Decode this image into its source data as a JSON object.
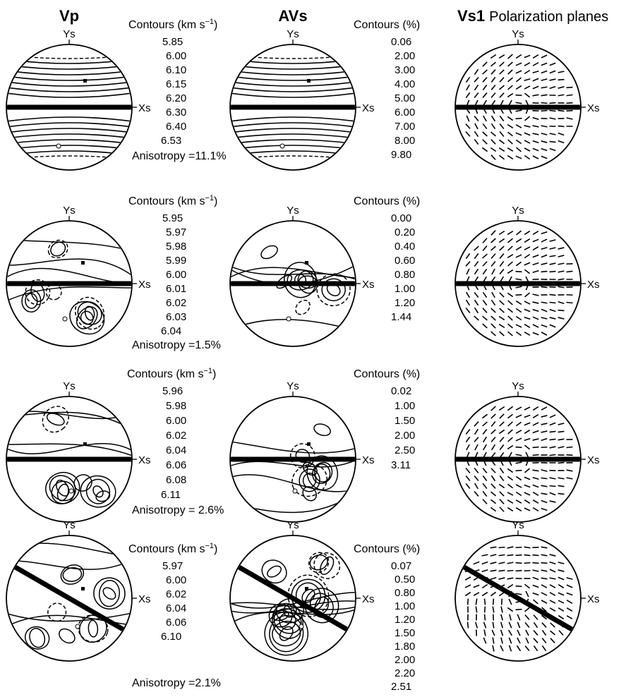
{
  "headers": {
    "vp": "Vp",
    "avs": "AVs",
    "vs1_bold": "Vs1",
    "vs1_rest": "Polarization planes"
  },
  "axis_labels": {
    "y": "Ys",
    "x": "Xs"
  },
  "rows": [
    {
      "vp_title": "Contours (km s",
      "vp_title_sup": "−1",
      "vp_title_end": ")",
      "vp_values": [
        "5.85",
        "6.00",
        "6.10",
        "6.15",
        "6.20",
        "6.30",
        "6.40",
        "6.53"
      ],
      "anisotropy": "Anisotropy =11.1%",
      "avs_title": "Contours (%)",
      "avs_values": [
        "0.06",
        "2.00",
        "3.00",
        "4.00",
        "5.00",
        "6.00",
        "7.00",
        "8.00",
        "9.80"
      ]
    },
    {
      "vp_title": "Contours (km s",
      "vp_title_sup": "−1",
      "vp_title_end": ")",
      "vp_values": [
        "5.95",
        "5.97",
        "5.98",
        "5.99",
        "6.00",
        "6.01",
        "6.02",
        "6.03",
        "6.04"
      ],
      "anisotropy": "Anisotropy =1.5%",
      "avs_title": "Contours (%)",
      "avs_values": [
        "0.00",
        "0.20",
        "0.40",
        "0.60",
        "0.80",
        "1.00",
        "1.20",
        "1.44"
      ]
    },
    {
      "vp_title": "Contours (km s",
      "vp_title_sup": "−1",
      "vp_title_end": ")",
      "vp_values": [
        "5.96",
        "5.98",
        "6.00",
        "6.02",
        "6.04",
        "6.06",
        "6.08",
        "6.11"
      ],
      "anisotropy": "Anisotropy = 2.6%",
      "avs_title": "Contours (%)",
      "avs_values": [
        "0.02",
        "1.00",
        "1.50",
        "2.00",
        "2.50",
        "3.11"
      ]
    },
    {
      "vp_title": "Contours (km s",
      "vp_title_sup": "−1",
      "vp_title_end": ")",
      "vp_values": [
        "5.97",
        "6.00",
        "6.02",
        "6.04",
        "6.06",
        "6.10"
      ],
      "anisotropy": "Anisotropy =2.1%",
      "avs_title": "Contours (%)",
      "avs_values": [
        "0.07",
        "0.50",
        "0.80",
        "1.00",
        "1.20",
        "1.50",
        "1.80",
        "2.00",
        "2.20",
        "2.51"
      ]
    }
  ]
}
